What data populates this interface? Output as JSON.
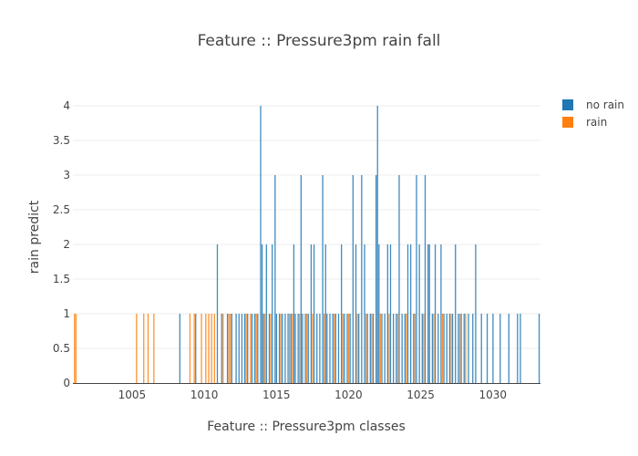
{
  "chart_data": {
    "type": "bar",
    "title": "Feature :: Pressure3pm rain fall",
    "xlabel": "Feature :: Pressure3pm classes",
    "ylabel": "rain predict",
    "xlim": [
      1000.9,
      1033.3
    ],
    "ylim": [
      0,
      4
    ],
    "x_ticks": [
      "1005",
      "1010",
      "1015",
      "1020",
      "1025",
      "1030"
    ],
    "x_tick_values": [
      1005,
      1010,
      1015,
      1020,
      1025,
      1030
    ],
    "y_ticks": [
      "0",
      "0.5",
      "1",
      "1.5",
      "2",
      "2.5",
      "3",
      "3.5",
      "4"
    ],
    "y_tick_values": [
      0,
      0.5,
      1,
      1.5,
      2,
      2.5,
      3,
      3.5,
      4
    ],
    "grid": true,
    "legend": "top-right",
    "series": [
      {
        "name": "no rain",
        "color": "#1f77b4",
        "x": [
          1008.3,
          1009.4,
          1010.9,
          1011.2,
          1011.6,
          1011.9,
          1012.2,
          1012.4,
          1012.6,
          1012.8,
          1013.0,
          1013.3,
          1013.5,
          1013.7,
          1013.9,
          1014.0,
          1014.1,
          1014.3,
          1014.5,
          1014.7,
          1014.9,
          1015.0,
          1015.2,
          1015.4,
          1015.6,
          1015.8,
          1016.0,
          1016.2,
          1016.3,
          1016.5,
          1016.7,
          1016.8,
          1017.0,
          1017.2,
          1017.4,
          1017.6,
          1017.8,
          1018.0,
          1018.2,
          1018.4,
          1018.5,
          1018.7,
          1018.9,
          1019.1,
          1019.3,
          1019.5,
          1019.7,
          1019.9,
          1020.1,
          1020.3,
          1020.5,
          1020.7,
          1020.9,
          1021.1,
          1021.3,
          1021.5,
          1021.7,
          1021.9,
          1022.0,
          1022.1,
          1022.3,
          1022.5,
          1022.7,
          1022.9,
          1023.1,
          1023.3,
          1023.5,
          1023.7,
          1023.9,
          1024.1,
          1024.3,
          1024.5,
          1024.7,
          1024.9,
          1025.1,
          1025.3,
          1025.5,
          1025.6,
          1025.8,
          1026.0,
          1026.2,
          1026.4,
          1026.6,
          1026.8,
          1027.0,
          1027.2,
          1027.4,
          1027.6,
          1027.8,
          1028.0,
          1028.3,
          1028.6,
          1028.8,
          1029.2,
          1029.6,
          1030.0,
          1030.5,
          1031.1,
          1031.7,
          1031.9,
          1033.2
        ],
        "values": [
          1,
          1,
          2,
          1,
          1,
          1,
          1,
          1,
          1,
          1,
          1,
          1,
          1,
          1,
          4,
          2,
          1,
          2,
          1,
          2,
          3,
          1,
          1,
          1,
          1,
          1,
          1,
          2,
          1,
          1,
          3,
          1,
          1,
          1,
          2,
          2,
          1,
          1,
          3,
          2,
          1,
          1,
          1,
          1,
          1,
          2,
          1,
          1,
          1,
          3,
          2,
          1,
          3,
          2,
          1,
          1,
          1,
          3,
          4,
          2,
          1,
          1,
          2,
          2,
          1,
          1,
          3,
          1,
          1,
          2,
          2,
          1,
          3,
          2,
          1,
          3,
          2,
          2,
          1,
          2,
          1,
          2,
          1,
          1,
          1,
          1,
          2,
          1,
          1,
          1,
          1,
          1,
          2,
          1,
          1,
          1,
          1,
          1,
          1,
          1,
          1
        ]
      },
      {
        "name": "rain",
        "color": "#ff7f0e",
        "x": [
          1001.0,
          1001.1,
          1005.3,
          1005.8,
          1006.1,
          1006.5,
          1009.0,
          1009.3,
          1009.8,
          1010.1,
          1010.3,
          1010.5,
          1010.7,
          1011.3,
          1011.7,
          1011.8,
          1012.9,
          1013.2,
          1013.6,
          1014.2,
          1014.6,
          1015.3,
          1015.9,
          1016.1,
          1016.6,
          1017.1,
          1017.5,
          1018.3,
          1019.0,
          1019.6,
          1020.0,
          1020.6,
          1021.2,
          1021.6,
          1022.2,
          1022.8,
          1023.4,
          1024.0,
          1024.6,
          1025.2,
          1025.9,
          1026.5,
          1027.1,
          1027.7,
          1028.1
        ],
        "values": [
          1,
          1,
          1,
          1,
          1,
          1,
          1,
          1,
          1,
          1,
          1,
          1,
          1,
          1,
          1,
          1,
          1,
          1,
          1,
          1,
          1,
          1,
          1,
          1,
          1,
          1,
          1,
          1,
          1,
          1,
          1,
          1,
          1,
          1,
          1,
          1,
          1,
          1,
          1,
          1,
          1,
          1,
          1,
          1,
          1
        ]
      }
    ]
  }
}
